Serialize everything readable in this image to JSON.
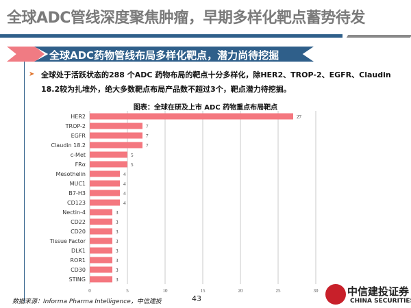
{
  "title": "全球ADC管线深度聚焦肿瘤，早期多样化靶点蓄势待发",
  "banner": "全球ADC药物管线布局多样化靶点，潜力尚待挖掘",
  "bullet_text": "全球处于活跃状态的288 个ADC 药物布局的靶点十分多样化，除HER2、TROP-2、EGFR、Claudin 18.2较为扎堆外，绝大多数靶点布局产品数不超过3个，靶点潜力待挖掘。",
  "source": "数据来源：Informa Pharma Intelligence，中信建投",
  "page_number": "43",
  "logo": {
    "cn": "中信建投证券",
    "en": "CHINA SECURITIES"
  },
  "colors": {
    "bar": "#f4777f",
    "accent_blue": "#2f5f8a",
    "accent_pink": "#f07b83"
  },
  "chart_data": {
    "type": "bar",
    "orientation": "horizontal",
    "title": "图表：全球在研及上市 ADC 药物重点布局靶点",
    "categories": [
      "HER2",
      "TROP-2",
      "EGFR",
      "Claudin 18.2",
      "c-Met",
      "FRα",
      "Mesothelin",
      "MUC1",
      "B7-H3",
      "CD123",
      "Nectin-4",
      "CD22",
      "CD20",
      "Tissue Factor",
      "DLK1",
      "ROR1",
      "CD30",
      "STING"
    ],
    "values": [
      27,
      7,
      7,
      7,
      5,
      5,
      4,
      4,
      4,
      4,
      3,
      3,
      3,
      3,
      3,
      3,
      3,
      3
    ],
    "xlim": [
      0,
      30
    ],
    "xticks": [
      0,
      5,
      10,
      15,
      20,
      25,
      30
    ],
    "grid": true
  }
}
